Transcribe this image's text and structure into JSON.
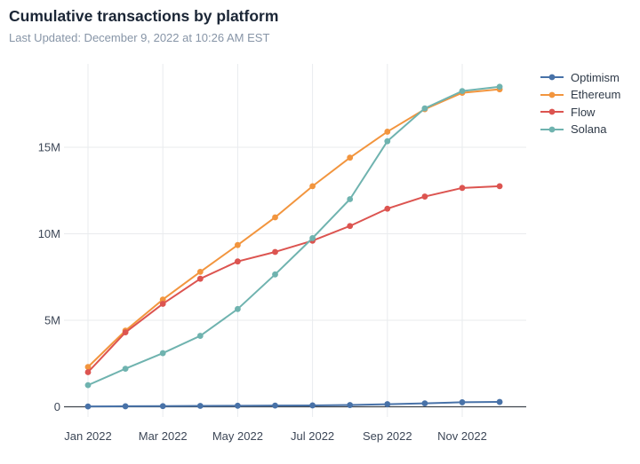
{
  "header": {
    "title": "Cumulative transactions by platform",
    "subtitle": "Last Updated: December 9, 2022 at 10:26 AM EST"
  },
  "chart_data": {
    "type": "line",
    "x": [
      "Jan 2022",
      "Feb 2022",
      "Mar 2022",
      "Apr 2022",
      "May 2022",
      "Jun 2022",
      "Jul 2022",
      "Aug 2022",
      "Sep 2022",
      "Oct 2022",
      "Nov 2022",
      "Dec 2022"
    ],
    "x_tick_labels": [
      "Jan 2022",
      "Mar 2022",
      "May 2022",
      "Jul 2022",
      "Sep 2022",
      "Nov 2022"
    ],
    "x_tick_indices": [
      0,
      2,
      4,
      6,
      8,
      10
    ],
    "y_tick_labels": [
      "0",
      "5M",
      "10M",
      "15M"
    ],
    "y_tick_values_millions": [
      0,
      5,
      10,
      15
    ],
    "ylim_millions": [
      0,
      19.8
    ],
    "grid": true,
    "legend_position": "right",
    "series": [
      {
        "name": "Optimism",
        "color": "#4872a8",
        "values_millions": [
          0.02,
          0.03,
          0.04,
          0.05,
          0.06,
          0.07,
          0.08,
          0.1,
          0.15,
          0.2,
          0.26,
          0.28
        ]
      },
      {
        "name": "Ethereum",
        "color": "#f2953e",
        "values_millions": [
          2.3,
          4.4,
          6.2,
          7.8,
          9.35,
          10.95,
          12.75,
          14.4,
          15.9,
          17.2,
          18.15,
          18.35
        ]
      },
      {
        "name": "Flow",
        "color": "#dc5450",
        "values_millions": [
          2.0,
          4.3,
          5.95,
          7.4,
          8.4,
          8.95,
          9.6,
          10.45,
          11.45,
          12.15,
          12.65,
          12.75
        ]
      },
      {
        "name": "Solana",
        "color": "#6fb3af",
        "values_millions": [
          1.25,
          2.2,
          3.1,
          4.1,
          5.65,
          7.65,
          9.75,
          12.0,
          15.35,
          17.25,
          18.25,
          18.5
        ]
      }
    ],
    "colors": {
      "grid_line": "#e9ebee",
      "axis_line": "#40464e",
      "tick_label": "#3d4757"
    }
  }
}
